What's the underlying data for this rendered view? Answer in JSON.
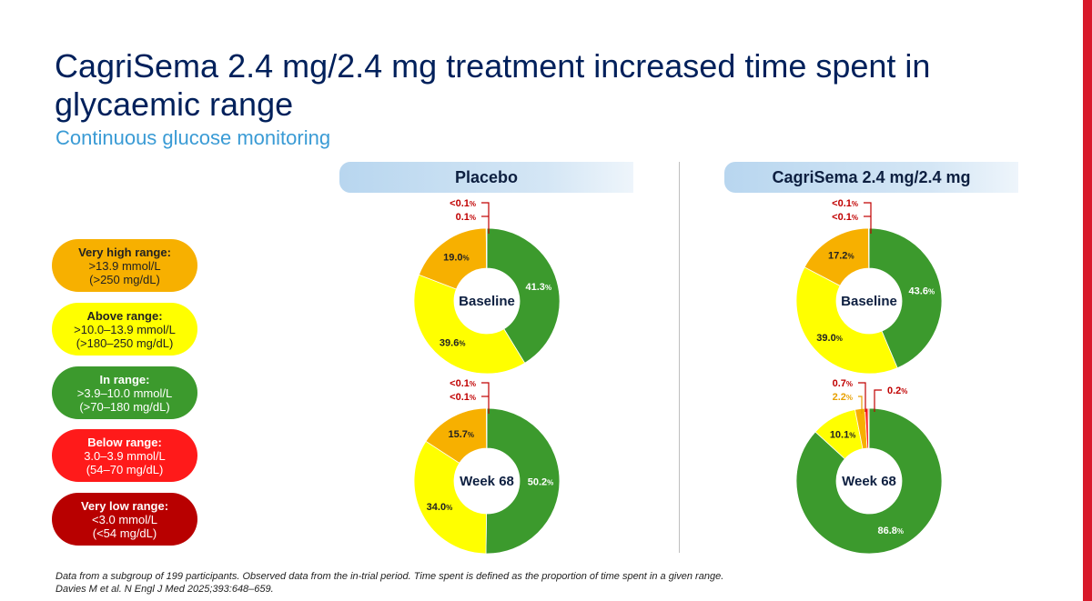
{
  "title": "CagriSema 2.4 mg/2.4 mg treatment increased time spent in glycaemic range",
  "subtitle": "Continuous glucose monitoring",
  "footnote_line1": "Data from a subgroup of 199 participants. Observed data from the in-trial period. Time spent is defined as the proportion of time spent in a given range.",
  "footnote_line2": "Davies M et al. N Engl J Med 2025;393:648–659.",
  "colors": {
    "very_high": "#f7b000",
    "above": "#ffff00",
    "in_range": "#3c9a2d",
    "below": "#ff1a1a",
    "very_low": "#b80000",
    "label_red": "#c00000",
    "label_orange": "#e8a000"
  },
  "legend": [
    {
      "title": "Very high range:",
      "line1": ">13.9 mmol/L",
      "line2": "(>250 mg/dL)",
      "color": "#f7b000",
      "text_color": "#222222"
    },
    {
      "title": "Above range:",
      "line1": ">10.0–13.9 mmol/L",
      "line2": "(>180–250 mg/dL)",
      "color": "#ffff00",
      "text_color": "#222222"
    },
    {
      "title": "In range:",
      "line1": ">3.9–10.0 mmol/L",
      "line2": "(>70–180 mg/dL)",
      "color": "#3c9a2d",
      "text_color": "#ffffff"
    },
    {
      "title": "Below range:",
      "line1": "3.0–3.9 mmol/L",
      "line2": "(54–70 mg/dL)",
      "color": "#ff1a1a",
      "text_color": "#ffffff"
    },
    {
      "title": "Very low range:",
      "line1": "<3.0 mmol/L",
      "line2": "(<54 mg/dL)",
      "color": "#b80000",
      "text_color": "#ffffff"
    }
  ],
  "panels": [
    {
      "header": "Placebo"
    },
    {
      "header": "CagriSema 2.4 mg/2.4 mg"
    }
  ],
  "chart_data": [
    {
      "type": "pie",
      "variant": "donut",
      "group": "Placebo",
      "center_label": "Baseline",
      "categories": [
        "In range",
        "Above range",
        "Very high range",
        "Below range",
        "Very low range"
      ],
      "values": [
        41.3,
        39.6,
        19.0,
        0.1,
        0.05
      ],
      "labels": [
        "41.3",
        "39.6",
        "19.0",
        "0.1",
        "<0.1"
      ],
      "callouts": [
        {
          "text": "<0.1",
          "color": "#c00000"
        },
        {
          "text": "0.1",
          "color": "#c00000"
        }
      ]
    },
    {
      "type": "pie",
      "variant": "donut",
      "group": "Placebo",
      "center_label": "Week 68",
      "categories": [
        "In range",
        "Above range",
        "Very high range",
        "Below range",
        "Very low range"
      ],
      "values": [
        50.2,
        34.0,
        15.7,
        0.05,
        0.05
      ],
      "labels": [
        "50.2",
        "34.0",
        "15.7",
        "<0.1",
        "<0.1"
      ],
      "callouts": [
        {
          "text": "<0.1",
          "color": "#c00000"
        },
        {
          "text": "<0.1",
          "color": "#c00000"
        }
      ]
    },
    {
      "type": "pie",
      "variant": "donut",
      "group": "CagriSema 2.4 mg/2.4 mg",
      "center_label": "Baseline",
      "categories": [
        "In range",
        "Above range",
        "Very high range",
        "Below range",
        "Very low range"
      ],
      "values": [
        43.6,
        39.0,
        17.2,
        0.05,
        0.05
      ],
      "labels": [
        "43.6",
        "39.0",
        "17.2",
        "<0.1",
        "<0.1"
      ],
      "callouts": [
        {
          "text": "<0.1",
          "color": "#c00000"
        },
        {
          "text": "<0.1",
          "color": "#c00000"
        }
      ]
    },
    {
      "type": "pie",
      "variant": "donut",
      "group": "CagriSema 2.4 mg/2.4 mg",
      "center_label": "Week 68",
      "categories": [
        "In range",
        "Above range",
        "Very high range",
        "Below range",
        "Very low range"
      ],
      "values": [
        86.8,
        10.1,
        2.2,
        0.7,
        0.2
      ],
      "labels": [
        "86.8",
        "10.1",
        "2.2",
        "0.7",
        "0.2"
      ],
      "callouts": [
        {
          "text": "0.7",
          "color": "#c00000"
        },
        {
          "text": "2.2",
          "color": "#e8a000"
        },
        {
          "text": "0.2",
          "color": "#c00000"
        }
      ]
    }
  ]
}
